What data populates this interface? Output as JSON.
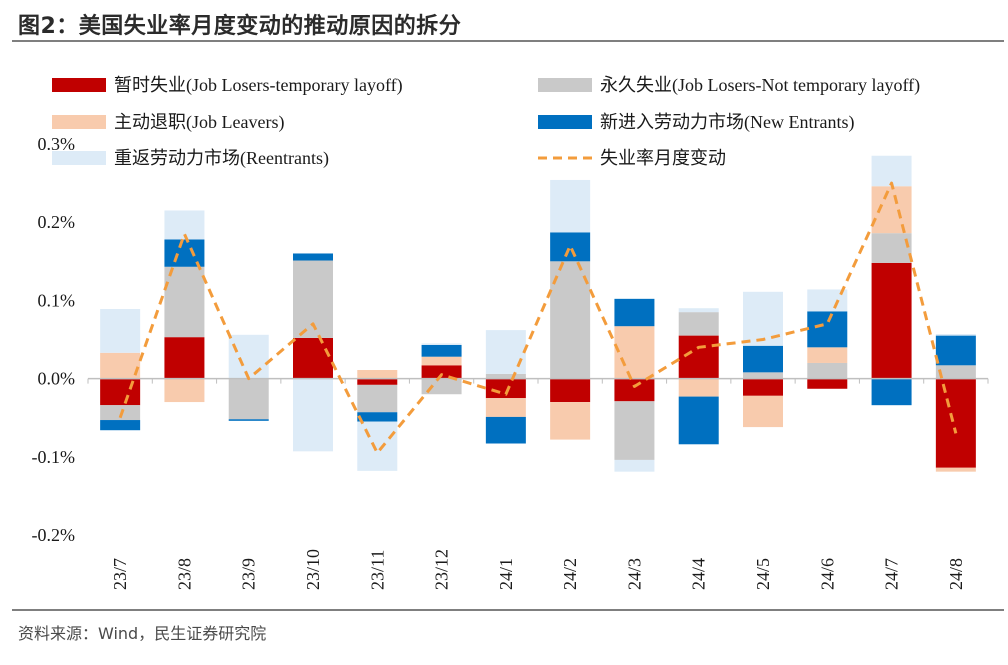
{
  "header": {
    "title": "图2：美国失业率月度变动的推动原因的拆分"
  },
  "footer": {
    "source": "资料来源：Wind，民生证券研究院"
  },
  "chart_data": {
    "type": "bar",
    "stacked": true,
    "title": "",
    "xlabel": "",
    "ylabel": "",
    "ylim": [
      -0.2,
      0.3
    ],
    "yticks": [
      "0.3%",
      "0.2%",
      "0.1%",
      "0.0%",
      "-0.1%",
      "-0.2%"
    ],
    "categories": [
      "23/7",
      "23/8",
      "23/9",
      "23/10",
      "23/11",
      "23/12",
      "24/1",
      "24/2",
      "24/3",
      "24/4",
      "24/5",
      "24/6",
      "24/7",
      "24/8"
    ],
    "legend_position": "top",
    "series": [
      {
        "name": "暂时失业(Job Losers-temporary layoff)",
        "color": "#c00000",
        "kind": "bar",
        "values": [
          -0.034,
          0.053,
          0.0,
          0.052,
          -0.008,
          0.017,
          -0.025,
          -0.03,
          -0.029,
          0.055,
          -0.022,
          -0.013,
          0.148,
          -0.114
        ]
      },
      {
        "name": "永久失业(Job Losers-Not temporary layoff)",
        "color": "#c9c9c9",
        "kind": "bar",
        "values": [
          -0.019,
          0.09,
          -0.052,
          0.099,
          -0.035,
          -0.02,
          0.006,
          0.15,
          -0.075,
          0.03,
          0.008,
          0.02,
          0.038,
          0.017
        ]
      },
      {
        "name": "主动退职(Job Leavers)",
        "color": "#f8cbad",
        "kind": "bar",
        "values": [
          0.033,
          -0.03,
          0.0,
          0.0,
          0.011,
          0.011,
          -0.024,
          -0.048,
          0.067,
          -0.023,
          -0.04,
          0.02,
          0.06,
          -0.005
        ]
      },
      {
        "name": "新进入劳动力市场(New Entrants)",
        "color": "#0070c0",
        "kind": "bar",
        "values": [
          -0.013,
          0.035,
          -0.002,
          0.009,
          -0.012,
          0.015,
          -0.034,
          0.037,
          0.035,
          -0.061,
          0.034,
          0.046,
          -0.034,
          0.038
        ]
      },
      {
        "name": "重返劳动力市场(Reentrants)",
        "color": "#ddebf7",
        "kind": "bar",
        "values": [
          0.056,
          0.037,
          0.056,
          -0.093,
          -0.063,
          0.002,
          0.056,
          0.067,
          -0.015,
          0.005,
          0.069,
          0.028,
          0.039,
          0.002
        ]
      },
      {
        "name": "失业率月度变动",
        "color": "#f39c3c",
        "kind": "line",
        "dashed": true,
        "values": [
          -0.05,
          0.185,
          0.0,
          0.07,
          -0.095,
          0.005,
          -0.02,
          0.17,
          -0.01,
          0.04,
          0.05,
          0.07,
          0.25,
          -0.07
        ]
      }
    ]
  }
}
